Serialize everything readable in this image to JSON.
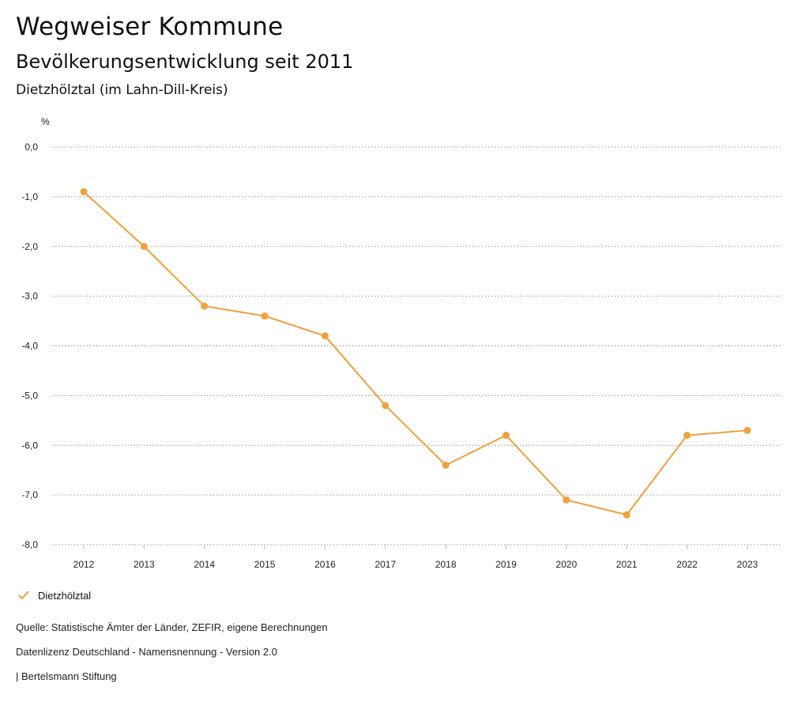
{
  "header": {
    "title": "Wegweiser Kommune",
    "subtitle": "Bevölkerungsentwicklung seit 2011",
    "location": "Dietzhölztal (im Lahn-Dill-Kreis)"
  },
  "chart_data": {
    "type": "line",
    "unit_label": "%",
    "categories": [
      "2012",
      "2013",
      "2014",
      "2015",
      "2016",
      "2017",
      "2018",
      "2019",
      "2020",
      "2021",
      "2022",
      "2023"
    ],
    "series": [
      {
        "name": "Dietzhölztal",
        "color": "#f0a03c",
        "values": [
          -0.9,
          -2.0,
          -3.2,
          -3.4,
          -3.8,
          -5.2,
          -6.4,
          -5.8,
          -7.1,
          -7.4,
          -5.8,
          -5.7
        ]
      }
    ],
    "ylim": [
      -8,
      0
    ],
    "yticks": [
      0,
      -1,
      -2,
      -3,
      -4,
      -5,
      -6,
      -7,
      -8
    ],
    "ytick_labels": [
      "0,0",
      "-1,0",
      "-2,0",
      "-3,0",
      "-4,0",
      "-5,0",
      "-6,0",
      "-7,0",
      "-8,0"
    ],
    "grid": true,
    "legend_position": "bottom-left"
  },
  "legend": {
    "label": "Dietzhölztal"
  },
  "footer": {
    "source": "Quelle: Statistische Ämter der Länder, ZEFIR, eigene Berechnungen",
    "license": "Datenlizenz Deutschland - Namensnennung - Version 2.0",
    "publisher": "| Bertelsmann Stiftung"
  }
}
